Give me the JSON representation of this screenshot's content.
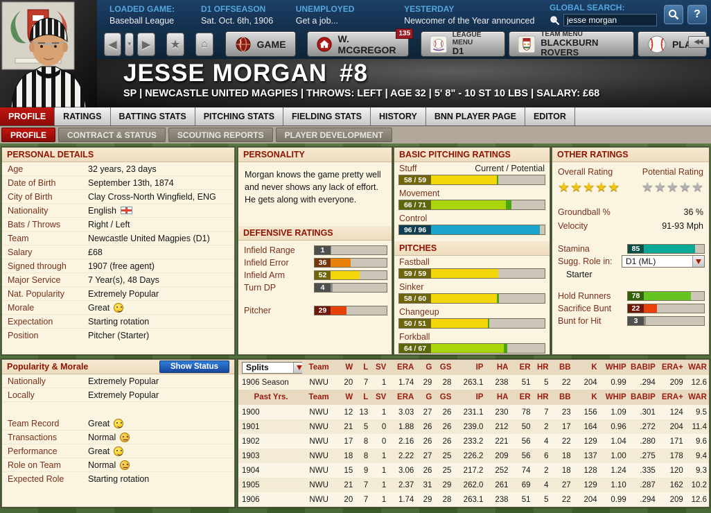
{
  "colors": {
    "accent_red": "#a31010",
    "link_blue": "#53a7e0",
    "button_blue": "#1d63b5",
    "bar_yellow": "#f2d60a",
    "bar_chartreuse": "#a9d50a",
    "bar_green": "#66c41e",
    "bar_orange": "#e8820a",
    "bar_red": "#e8420a",
    "bar_blue": "#1ba4cc",
    "bar_teal": "#0aa896",
    "bar_gray": "#8a8a82",
    "bar_potential_green": "#4ba50f",
    "star_gold": "#f0c413",
    "star_gray": "#b2b2b2",
    "panel_cream": "#faf4e1",
    "panel_header": "#f2e2c8",
    "content_green": "#50713a"
  },
  "icons": {
    "back": "◀",
    "nav_dropdown": "▼",
    "forward": "▶",
    "favorites": "★",
    "home": "⌂",
    "collapse": "◀◀",
    "help": "?"
  },
  "top_bar": {
    "loaded_game": {
      "label": "LOADED GAME:",
      "value": "Baseball League"
    },
    "phase": {
      "label": "D1 OFFSEASON",
      "value": "Sat. Oct. 6th, 1906"
    },
    "employment": {
      "label": "UNEMPLOYED",
      "value": "Get a job..."
    },
    "yesterday": {
      "label": "YESTERDAY",
      "value": "Newcomer of the Year announced"
    },
    "search": {
      "label": "GLOBAL SEARCH:",
      "value": "jesse morgan"
    }
  },
  "toolbar": {
    "game": "GAME",
    "manager": "W. MCGREGOR",
    "manager_badge": "135",
    "league_menu_label": "LEAGUE MENU",
    "league_menu_value": "D1",
    "team_menu_label": "TEAM MENU",
    "team_menu_value": "BLACKBURN ROVERS",
    "play": "PLAY"
  },
  "player_header": {
    "name": "JESSE MORGAN",
    "number": "#8",
    "subtitle": "SP | NEWCASTLE UNITED MAGPIES | THROWS: LEFT | AGE 32 | 5' 8\" - 10 ST 10 LBS | SALARY: £68"
  },
  "main_tabs": [
    "PROFILE",
    "RATINGS",
    "BATTING STATS",
    "PITCHING STATS",
    "FIELDING STATS",
    "HISTORY",
    "BNN PLAYER PAGE",
    "EDITOR"
  ],
  "sub_tabs": [
    "PROFILE",
    "CONTRACT & STATUS",
    "SCOUTING REPORTS",
    "PLAYER DEVELOPMENT"
  ],
  "personal_details": {
    "title": "PERSONAL DETAILS",
    "rows": [
      {
        "label": "Age",
        "value": "32 years, 23 days"
      },
      {
        "label": "Date of Birth",
        "value": "September 13th, 1874"
      },
      {
        "label": "City of Birth",
        "value": "Clay Cross-North Wingfield, ENG"
      },
      {
        "label": "Nationality",
        "value": "English",
        "icon": "england-flag"
      },
      {
        "label": "Bats / Throws",
        "value": "Right / Left"
      },
      {
        "label": "Team",
        "value": "Newcastle United Magpies (D1)"
      },
      {
        "label": "Salary",
        "value": "£68"
      },
      {
        "label": "Signed through",
        "value": "1907 (free agent)"
      },
      {
        "label": "Major Service",
        "value": "7 Year(s), 48 Days"
      },
      {
        "label": "Nat. Popularity",
        "value": "Extremely Popular"
      },
      {
        "label": "Morale",
        "value": "Great",
        "mood": "great"
      },
      {
        "label": "Expectation",
        "value": "Starting rotation"
      },
      {
        "label": "Position",
        "value": "Pitcher (Starter)"
      }
    ]
  },
  "personality": {
    "title": "PERSONALITY",
    "text": "Morgan knows the game pretty well and never shows any lack of effort. He gets along with everyone."
  },
  "defensive_ratings": {
    "title": "DEFENSIVE RATINGS",
    "bars": [
      {
        "label": "Infield Range",
        "value": 1,
        "color": "gray"
      },
      {
        "label": "Infield Error",
        "value": 36,
        "color": "orange"
      },
      {
        "label": "Infield Arm",
        "value": 52,
        "color": "yellow"
      },
      {
        "label": "Turn DP",
        "value": 4,
        "color": "gray"
      },
      {
        "label": "Pitcher",
        "value": 29,
        "color": "red"
      }
    ]
  },
  "basic_pitching_ratings": {
    "title": "BASIC PITCHING RATINGS",
    "scale_note": "Current / Potential",
    "bars": [
      {
        "label": "Stuff",
        "value": 58,
        "potential": 59,
        "color": "yellow"
      },
      {
        "label": "Movement",
        "value": 66,
        "potential": 71,
        "color": "chartreuse"
      },
      {
        "label": "Control",
        "value": 96,
        "potential": 96,
        "color": "blue"
      }
    ]
  },
  "pitches": {
    "title": "PITCHES",
    "bars": [
      {
        "label": "Fastball",
        "value": 59,
        "potential": 59,
        "color": "yellow"
      },
      {
        "label": "Sinker",
        "value": 58,
        "potential": 60,
        "color": "yellow"
      },
      {
        "label": "Changeup",
        "value": 50,
        "potential": 51,
        "color": "yellow"
      },
      {
        "label": "Forkball",
        "value": 64,
        "potential": 67,
        "color": "chartreuse"
      }
    ]
  },
  "other_ratings": {
    "title": "OTHER RATINGS",
    "overall_label": "Overall Rating",
    "potential_label": "Potential Rating",
    "overall_stars": 5,
    "potential_stars": 5,
    "groundball_label": "Groundball %",
    "groundball_value": "36 %",
    "velocity_label": "Velocity",
    "velocity_value": "91-93 Mph",
    "stamina_bar": {
      "label": "Stamina",
      "value": 85,
      "color": "teal"
    },
    "sugg_role_label": "Sugg. Role in:",
    "sugg_role_value": "D1 (ML)",
    "sugg_role_detail": "Starter",
    "bars": [
      {
        "label": "Hold Runners",
        "value": 78,
        "color": "green"
      },
      {
        "label": "Sacrifice Bunt",
        "value": 22,
        "color": "red"
      },
      {
        "label": "Bunt for Hit",
        "value": 3,
        "color": "gray"
      }
    ]
  },
  "popularity_morale": {
    "title": "Popularity & Morale",
    "button": "Show Status",
    "rows": [
      {
        "label": "Nationally",
        "value": "Extremely Popular"
      },
      {
        "label": "Locally",
        "value": "Extremely Popular"
      },
      {
        "label": "Team Record",
        "value": "Great",
        "mood": "great"
      },
      {
        "label": "Transactions",
        "value": "Normal",
        "mood": "neutral"
      },
      {
        "label": "Performance",
        "value": "Great",
        "mood": "great"
      },
      {
        "label": "Role on Team",
        "value": "Normal",
        "mood": "neutral"
      },
      {
        "label": "Expected Role",
        "value": "Starting rotation"
      }
    ]
  },
  "stats": {
    "splits_label": "Splits",
    "past_label": "Past Yrs.",
    "columns": [
      "Splits",
      "Team",
      "W",
      "L",
      "SV",
      "ERA",
      "G",
      "GS",
      "IP",
      "HA",
      "ER",
      "HR",
      "BB",
      "K",
      "WHIP",
      "BABIP",
      "ERA+",
      "WAR"
    ],
    "current_rows": [
      [
        "1906 Season",
        "NWU",
        "20",
        "7",
        "1",
        "1.74",
        "29",
        "28",
        "263.1",
        "238",
        "51",
        "5",
        "22",
        "204",
        "0.99",
        ".294",
        "209",
        "12.6"
      ]
    ],
    "past_rows": [
      [
        "1900",
        "NWU",
        "12",
        "13",
        "1",
        "3.03",
        "27",
        "26",
        "231.1",
        "230",
        "78",
        "7",
        "23",
        "156",
        "1.09",
        ".301",
        "124",
        "9.5"
      ],
      [
        "1901",
        "NWU",
        "21",
        "5",
        "0",
        "1.88",
        "26",
        "26",
        "239.0",
        "212",
        "50",
        "2",
        "17",
        "164",
        "0.96",
        ".272",
        "204",
        "11.4"
      ],
      [
        "1902",
        "NWU",
        "17",
        "8",
        "0",
        "2.16",
        "26",
        "26",
        "233.2",
        "221",
        "56",
        "4",
        "22",
        "129",
        "1.04",
        ".280",
        "171",
        "9.6"
      ],
      [
        "1903",
        "NWU",
        "18",
        "8",
        "1",
        "2.22",
        "27",
        "25",
        "226.2",
        "209",
        "56",
        "6",
        "18",
        "137",
        "1.00",
        ".275",
        "178",
        "9.4"
      ],
      [
        "1904",
        "NWU",
        "15",
        "9",
        "1",
        "3.06",
        "26",
        "25",
        "217.2",
        "252",
        "74",
        "2",
        "18",
        "128",
        "1.24",
        ".335",
        "120",
        "9.3"
      ],
      [
        "1905",
        "NWU",
        "21",
        "7",
        "1",
        "2.37",
        "31",
        "29",
        "262.0",
        "261",
        "69",
        "4",
        "27",
        "129",
        "1.10",
        ".287",
        "162",
        "10.2"
      ],
      [
        "1906",
        "NWU",
        "20",
        "7",
        "1",
        "1.74",
        "29",
        "28",
        "263.1",
        "238",
        "51",
        "5",
        "22",
        "204",
        "0.99",
        ".294",
        "209",
        "12.6"
      ]
    ]
  }
}
